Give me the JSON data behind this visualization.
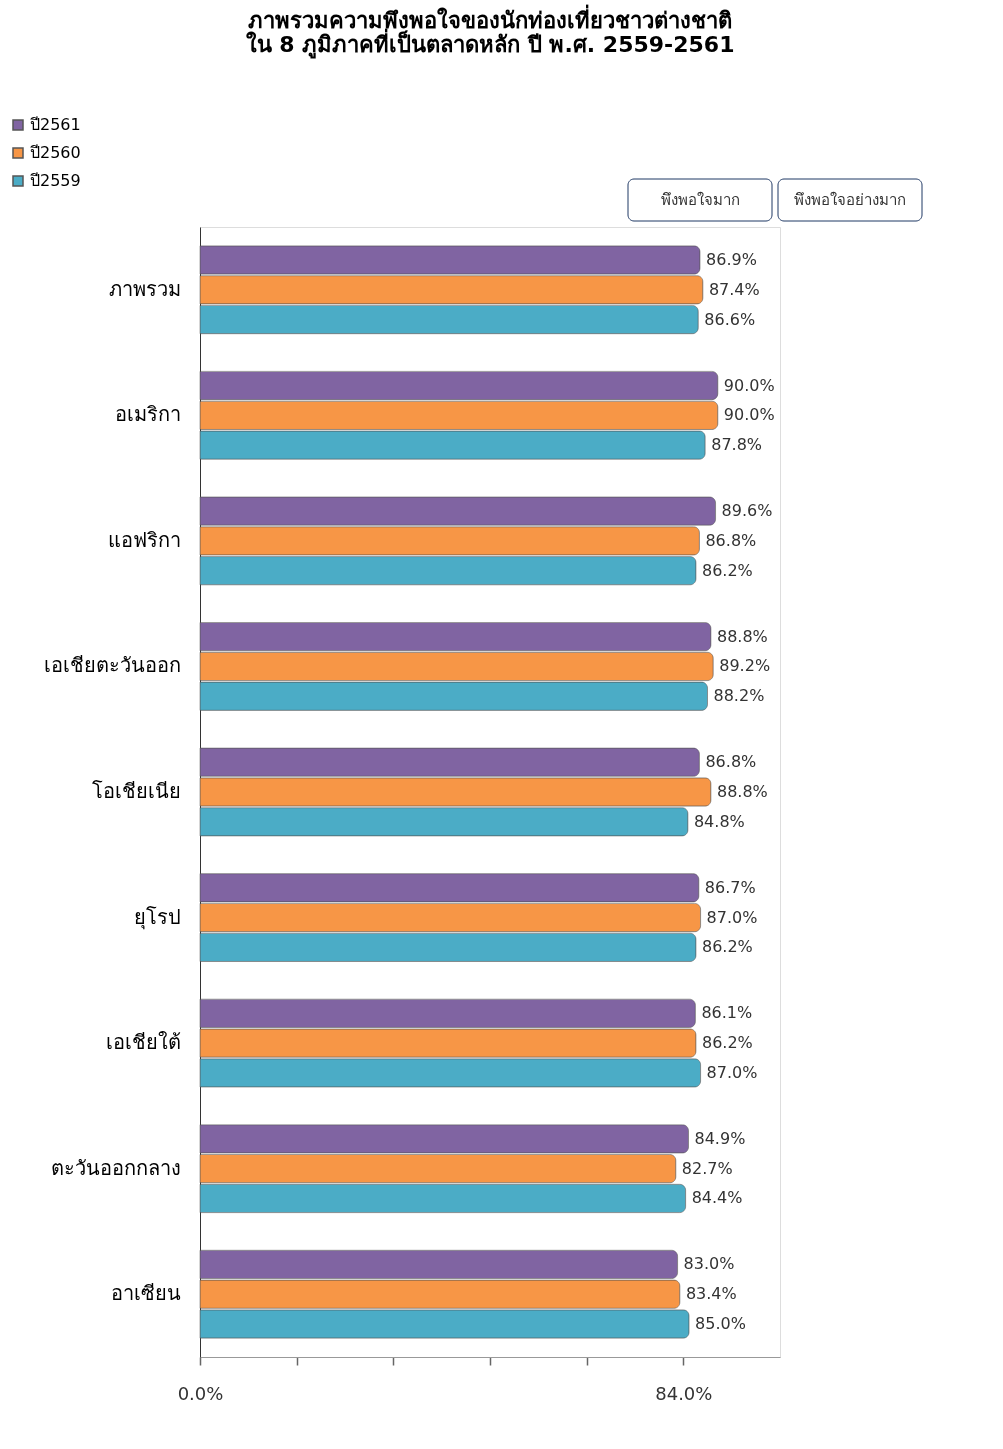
{
  "chart_data": {
    "type": "bar",
    "orientation": "horizontal",
    "title": [
      "ภาพรวมความพึงพอใจของนักท่องเที่ยวชาวต่างชาติ",
      "ใน 8 ภูมิภาคที่เป็นตลาดหลัก ปี พ.ศ. 2559-2561"
    ],
    "categories": [
      "ภาพรวม",
      "อเมริกา",
      "แอฟริกา",
      "เอเชียตะวันออก",
      "โอเชียเนีย",
      "ยุโรป",
      "เอเชียใต้",
      "ตะวันออกกลาง",
      "อาเซียน"
    ],
    "series": [
      {
        "name": "ปี2561",
        "color": "#8064a2",
        "values": [
          86.9,
          90.0,
          89.6,
          88.8,
          86.8,
          86.7,
          86.1,
          84.9,
          83.0
        ],
        "value_labels": [
          "86.9%",
          "90.0%",
          "89.6%",
          "88.8%",
          "86.8%",
          "86.7%",
          "86.1%",
          "84.9%",
          "83.0%"
        ]
      },
      {
        "name": "ปี2560",
        "color": "#f79646",
        "values": [
          87.4,
          90.0,
          86.8,
          89.2,
          88.8,
          87.0,
          86.2,
          82.7,
          83.4
        ],
        "value_labels": [
          "87.4%",
          "90.0%",
          "86.8%",
          "89.2%",
          "88.8%",
          "87.0%",
          "86.2%",
          "82.7%",
          "83.4%"
        ]
      },
      {
        "name": "ปี2559",
        "color": "#4bacc6",
        "values": [
          86.6,
          87.8,
          86.2,
          88.2,
          84.8,
          86.2,
          87.0,
          84.4,
          85.0
        ],
        "value_labels": [
          "86.6%",
          "87.8%",
          "86.2%",
          "88.2%",
          "84.8%",
          "86.2%",
          "87.0%",
          "84.4%",
          "85.0%"
        ]
      }
    ],
    "xlim": [
      0,
      100.8
    ],
    "xticks": [
      {
        "value": 0,
        "label": "0.0%"
      },
      {
        "value": 16.8,
        "label": null
      },
      {
        "value": 33.6,
        "label": null
      },
      {
        "value": 50.4,
        "label": null
      },
      {
        "value": 67.2,
        "label": null
      },
      {
        "value": 84,
        "label": "84.0%"
      }
    ],
    "annotations": [
      "พึงพอใจมาก",
      "พึงพอใจอย่างมาก"
    ],
    "legend": "top left",
    "grid": false
  }
}
